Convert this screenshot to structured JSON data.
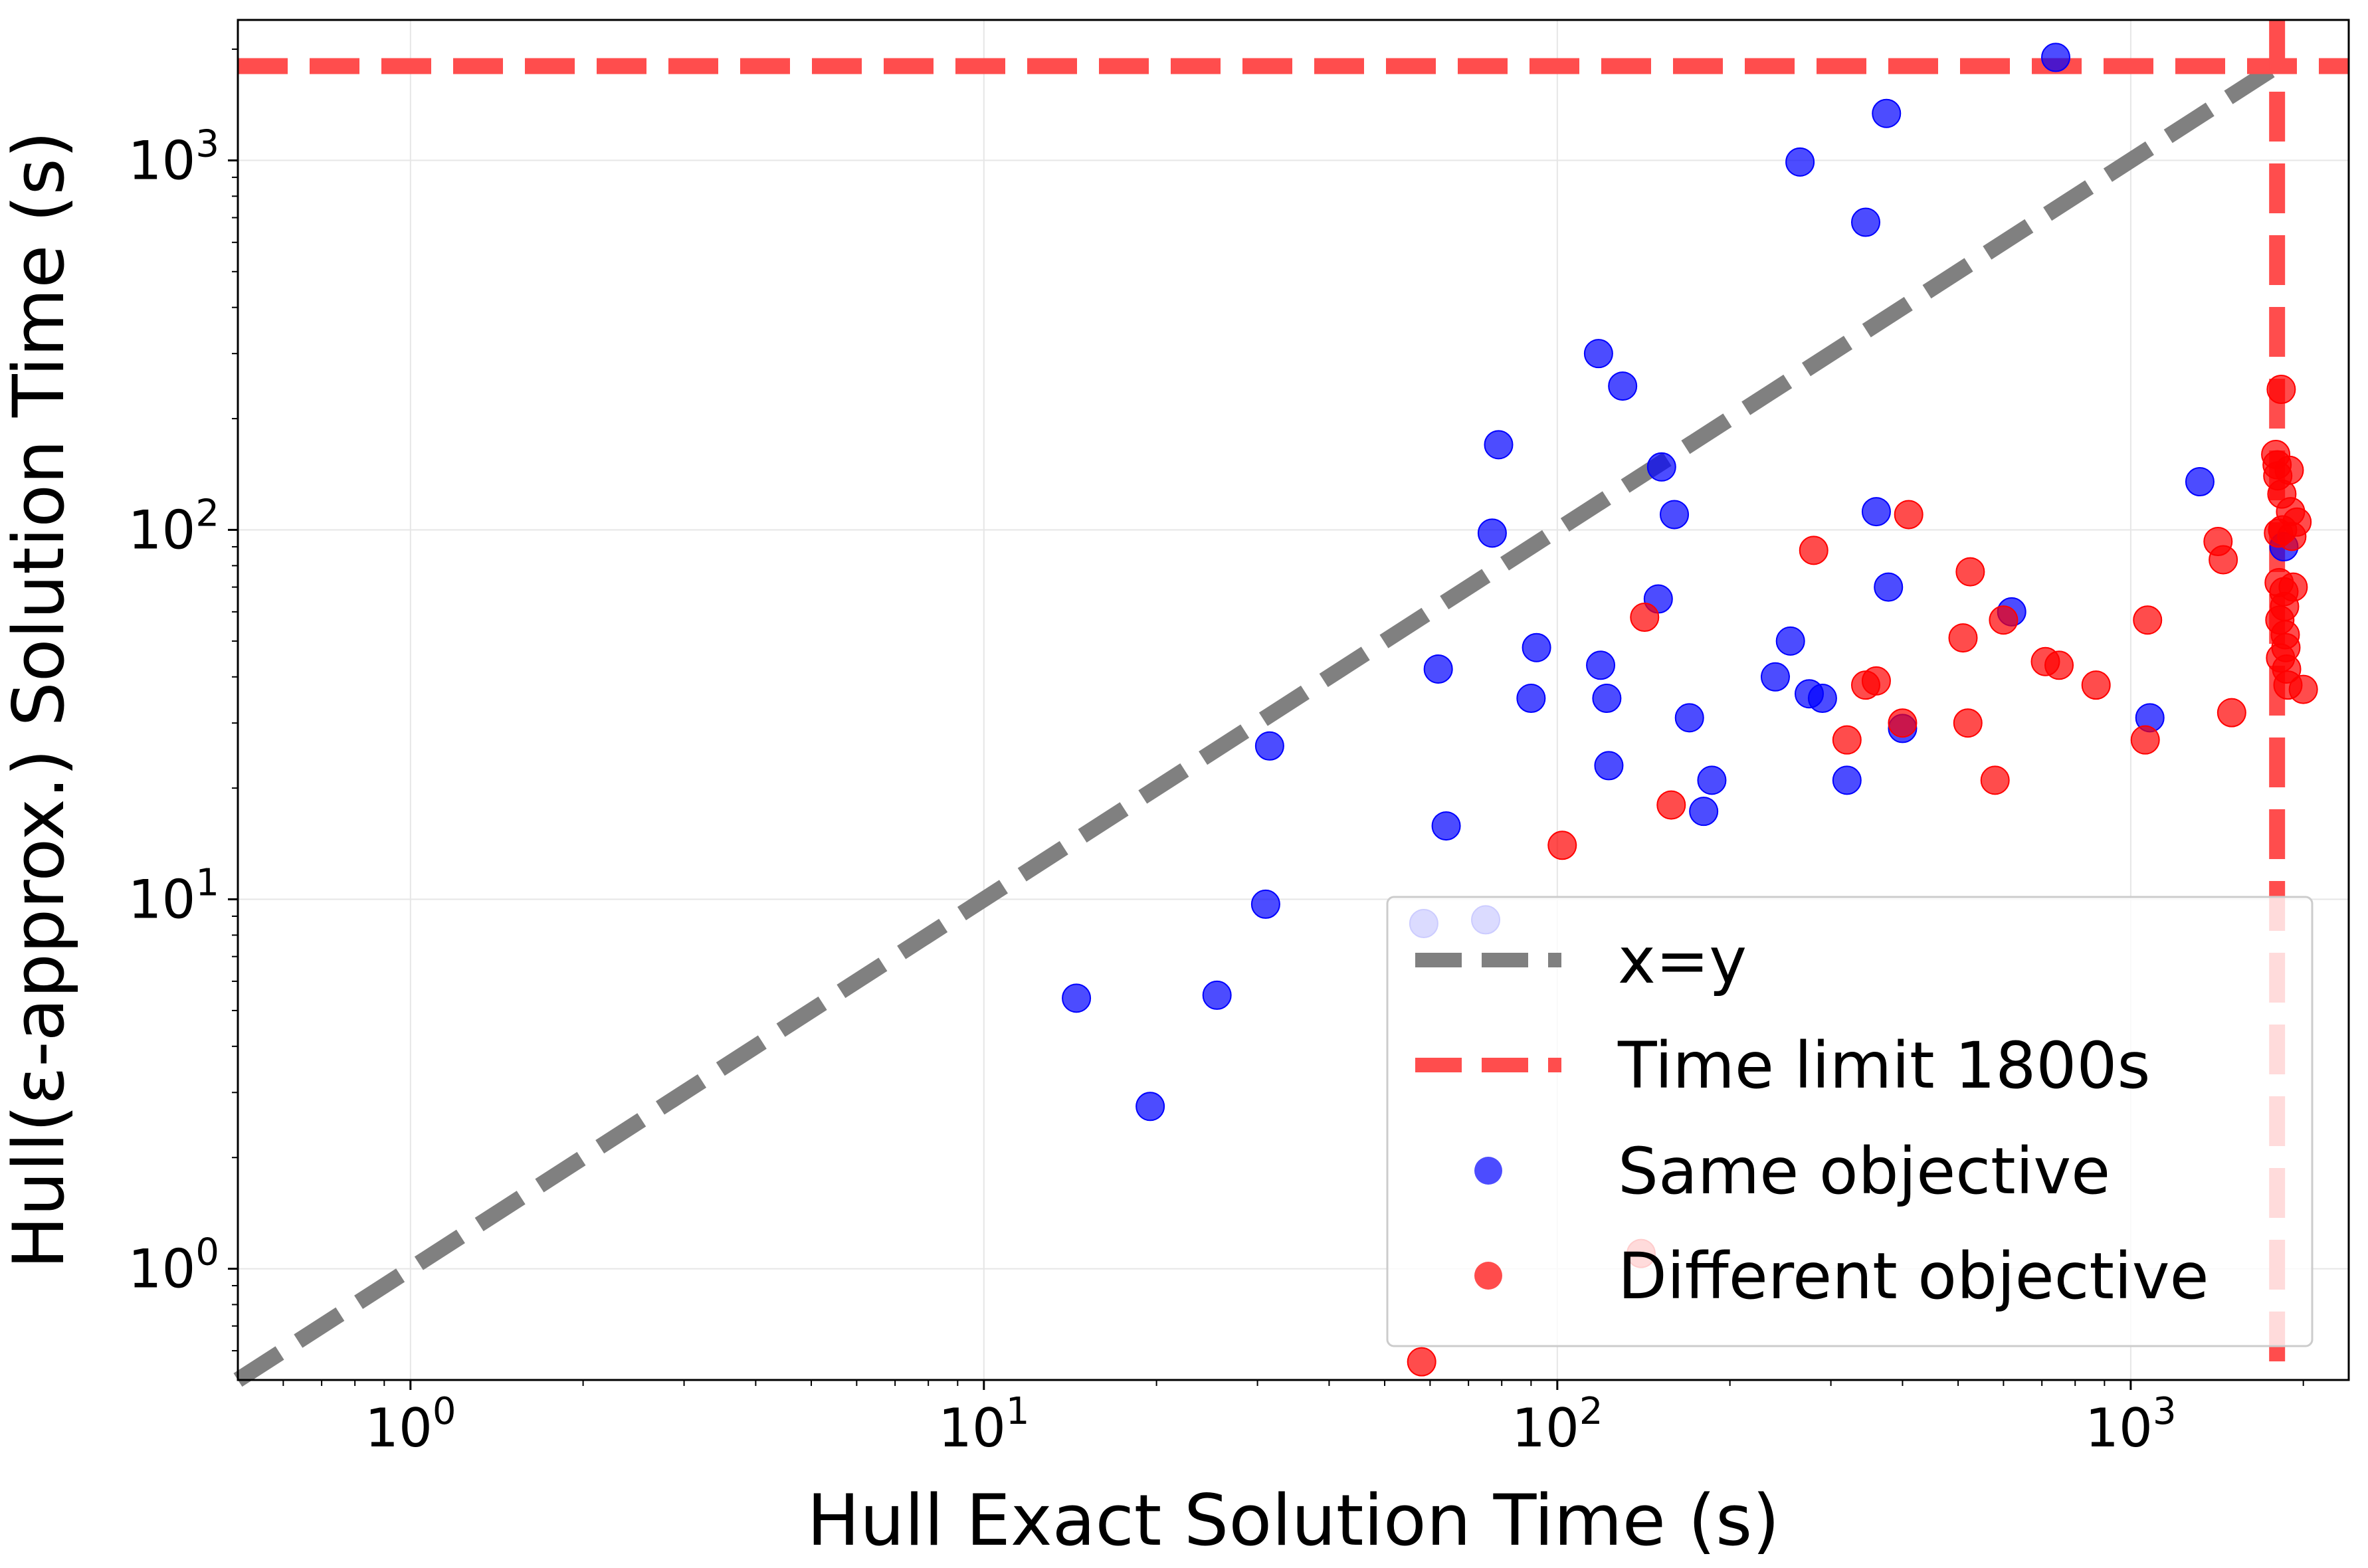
{
  "chart_data": {
    "type": "scatter",
    "xlabel": "Hull Exact Solution Time (s)",
    "ylabel": "Hull(ε-approx.) Solution Time (s)",
    "xscale": "log",
    "yscale": "log",
    "xlim": [
      0.5,
      2400
    ],
    "ylim": [
      0.5,
      2400
    ],
    "grid": true,
    "legend_position": "lower-right",
    "x_ticks": [
      {
        "base": "10",
        "exp": "0"
      },
      {
        "base": "10",
        "exp": "1"
      },
      {
        "base": "10",
        "exp": "2"
      },
      {
        "base": "10",
        "exp": "3"
      }
    ],
    "y_ticks": [
      {
        "base": "10",
        "exp": "0"
      },
      {
        "base": "10",
        "exp": "1"
      },
      {
        "base": "10",
        "exp": "2"
      },
      {
        "base": "10",
        "exp": "3"
      }
    ],
    "reference_lines": [
      {
        "name": "x=y",
        "kind": "diagonal",
        "color": "#808080"
      },
      {
        "name": "Time limit 1800s",
        "kind": "time_limit",
        "value": 1800,
        "color": "#ff4d4d"
      }
    ],
    "series": [
      {
        "name": "Same objective",
        "color": "#0000ff",
        "points": [
          [
            14.5,
            5.4
          ],
          [
            19.5,
            2.75
          ],
          [
            25.5,
            5.5
          ],
          [
            31,
            9.7
          ],
          [
            31.5,
            26
          ],
          [
            58.5,
            8.6
          ],
          [
            62,
            42
          ],
          [
            64,
            15.8
          ],
          [
            75,
            8.8
          ],
          [
            77,
            98
          ],
          [
            79,
            170
          ],
          [
            90,
            35
          ],
          [
            92,
            48
          ],
          [
            118,
            300
          ],
          [
            119,
            43
          ],
          [
            122,
            35
          ],
          [
            123,
            23
          ],
          [
            130,
            245
          ],
          [
            150,
            65
          ],
          [
            152,
            148
          ],
          [
            160,
            110
          ],
          [
            170,
            31
          ],
          [
            180,
            17.3
          ],
          [
            186,
            21
          ],
          [
            240,
            40
          ],
          [
            255,
            50
          ],
          [
            265,
            990
          ],
          [
            275,
            36
          ],
          [
            290,
            35
          ],
          [
            320,
            21
          ],
          [
            345,
            680
          ],
          [
            360,
            112
          ],
          [
            375,
            1340
          ],
          [
            378,
            70
          ],
          [
            400,
            29
          ],
          [
            620,
            60
          ],
          [
            740,
            1900
          ],
          [
            1080,
            31
          ],
          [
            1320,
            135
          ],
          [
            1850,
            90
          ]
        ]
      },
      {
        "name": "Different objective",
        "color": "#ff0000",
        "points": [
          [
            58,
            0.56
          ],
          [
            102,
            14
          ],
          [
            140,
            1.1
          ],
          [
            142,
            58
          ],
          [
            158,
            18
          ],
          [
            280,
            88
          ],
          [
            320,
            27
          ],
          [
            345,
            38
          ],
          [
            360,
            39
          ],
          [
            400,
            30
          ],
          [
            410,
            110
          ],
          [
            510,
            51
          ],
          [
            520,
            30
          ],
          [
            525,
            77
          ],
          [
            580,
            21
          ],
          [
            600,
            57
          ],
          [
            710,
            44
          ],
          [
            750,
            43
          ],
          [
            870,
            38
          ],
          [
            1060,
            27
          ],
          [
            1070,
            57
          ],
          [
            1420,
            93
          ],
          [
            1450,
            83
          ],
          [
            1500,
            32
          ],
          [
            1790,
            160
          ],
          [
            1800,
            150
          ],
          [
            1805,
            140
          ],
          [
            1810,
            98
          ],
          [
            1815,
            72
          ],
          [
            1820,
            57
          ],
          [
            1825,
            45
          ],
          [
            1830,
            240
          ],
          [
            1835,
            125
          ],
          [
            1840,
            100
          ],
          [
            1850,
            68
          ],
          [
            1855,
            62
          ],
          [
            1860,
            52
          ],
          [
            1865,
            48
          ],
          [
            1870,
            42
          ],
          [
            1880,
            38
          ],
          [
            1890,
            145
          ],
          [
            1900,
            112
          ],
          [
            1910,
            96
          ],
          [
            1920,
            70
          ],
          [
            1950,
            105
          ],
          [
            2000,
            37
          ]
        ]
      }
    ]
  }
}
